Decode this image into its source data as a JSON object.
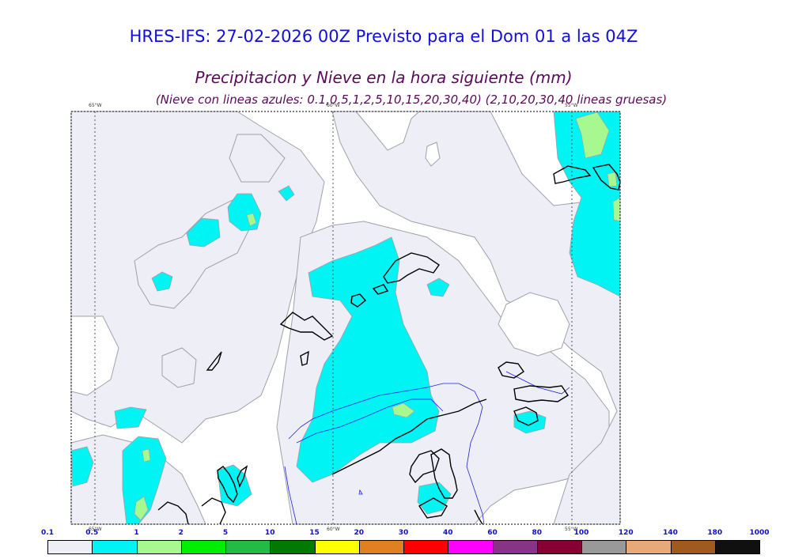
{
  "header": {
    "model_line": "HRES-IFS: 27-02-2026 00Z Previsto para el Dom 01 a las 04Z",
    "title": "Precipitacion y Nieve en la hora siguiente (mm)",
    "subtitle": "(Nieve con lineas azules: 0.1,0.5,1,2,5,10,15,20,30,40)  (2,10,20,30,40 lineas gruesas)"
  },
  "map": {
    "longitude_labels_top": [
      "65°W",
      "60°W",
      "55°W"
    ],
    "longitude_labels_bottom": [
      "65°W",
      "60°W",
      "55°W"
    ],
    "colors": {
      "light_precip": "#eeeef6",
      "cyan": "#00f4f4",
      "light_green": "#a8f890",
      "coast": "#000000",
      "snow_line": "#2020e0",
      "contour": "#a0a0a8"
    }
  },
  "colorbar": {
    "levels": [
      "0.1",
      "0.5",
      "1",
      "2",
      "5",
      "10",
      "15",
      "20",
      "30",
      "40",
      "60",
      "80",
      "100",
      "120",
      "140",
      "180",
      "1000"
    ],
    "colors": [
      "#eeeef6",
      "#00f4f4",
      "#a8f890",
      "#00ee00",
      "#22bb44",
      "#007a00",
      "#ffff00",
      "#e08020",
      "#ff0000",
      "#ff00ff",
      "#883388",
      "#880033",
      "#999999",
      "#e8a878",
      "#a05a20",
      "#101010"
    ]
  }
}
